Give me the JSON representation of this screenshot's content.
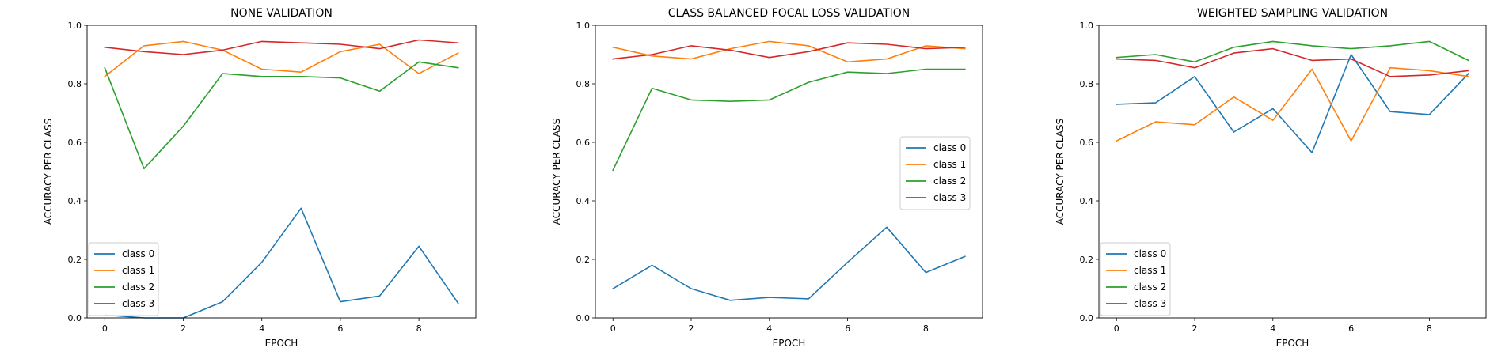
{
  "chart_data": [
    {
      "type": "line",
      "title": "NONE VALIDATION",
      "xlabel": "EPOCH",
      "ylabel": "ACCURACY PER CLASS",
      "xlim": [
        -0.45,
        9.45
      ],
      "ylim": [
        0.0,
        1.0
      ],
      "xticks": [
        0,
        2,
        4,
        6,
        8
      ],
      "yticks": [
        0.0,
        0.2,
        0.4,
        0.6,
        0.8,
        1.0
      ],
      "legend_position": "lower-left",
      "x": [
        0,
        1,
        2,
        3,
        4,
        5,
        6,
        7,
        8,
        9
      ],
      "series": [
        {
          "name": "class 0",
          "color": "#1f77b4",
          "values": [
            0.01,
            0.0,
            0.0,
            0.055,
            0.19,
            0.375,
            0.055,
            0.075,
            0.245,
            0.05
          ]
        },
        {
          "name": "class 1",
          "color": "#ff7f0e",
          "values": [
            0.825,
            0.93,
            0.945,
            0.915,
            0.85,
            0.84,
            0.91,
            0.935,
            0.835,
            0.905
          ]
        },
        {
          "name": "class 2",
          "color": "#2ca02c",
          "values": [
            0.855,
            0.51,
            0.655,
            0.835,
            0.825,
            0.825,
            0.82,
            0.775,
            0.875,
            0.855
          ]
        },
        {
          "name": "class 3",
          "color": "#d62728",
          "values": [
            0.925,
            0.91,
            0.9,
            0.915,
            0.945,
            0.94,
            0.935,
            0.92,
            0.95,
            0.94
          ]
        }
      ]
    },
    {
      "type": "line",
      "title": "CLASS BALANCED FOCAL LOSS VALIDATION",
      "xlabel": "EPOCH",
      "ylabel": "ACCURACY PER CLASS",
      "xlim": [
        -0.45,
        9.45
      ],
      "ylim": [
        0.0,
        1.0
      ],
      "xticks": [
        0,
        2,
        4,
        6,
        8
      ],
      "yticks": [
        0.0,
        0.2,
        0.4,
        0.6,
        0.8,
        1.0
      ],
      "legend_position": "center-right",
      "x": [
        0,
        1,
        2,
        3,
        4,
        5,
        6,
        7,
        8,
        9
      ],
      "series": [
        {
          "name": "class 0",
          "color": "#1f77b4",
          "values": [
            0.1,
            0.18,
            0.1,
            0.06,
            0.07,
            0.065,
            0.19,
            0.31,
            0.155,
            0.21
          ]
        },
        {
          "name": "class 1",
          "color": "#ff7f0e",
          "values": [
            0.925,
            0.895,
            0.885,
            0.92,
            0.945,
            0.93,
            0.875,
            0.885,
            0.93,
            0.92
          ]
        },
        {
          "name": "class 2",
          "color": "#2ca02c",
          "values": [
            0.505,
            0.785,
            0.745,
            0.74,
            0.745,
            0.805,
            0.84,
            0.835,
            0.85,
            0.85
          ]
        },
        {
          "name": "class 3",
          "color": "#d62728",
          "values": [
            0.885,
            0.9,
            0.93,
            0.915,
            0.89,
            0.91,
            0.94,
            0.935,
            0.92,
            0.925
          ]
        }
      ]
    },
    {
      "type": "line",
      "title": "WEIGHTED SAMPLING VALIDATION",
      "xlabel": "EPOCH",
      "ylabel": "ACCURACY PER CLASS",
      "xlim": [
        -0.45,
        9.45
      ],
      "ylim": [
        0.0,
        1.0
      ],
      "xticks": [
        0,
        2,
        4,
        6,
        8
      ],
      "yticks": [
        0.0,
        0.2,
        0.4,
        0.6,
        0.8,
        1.0
      ],
      "legend_position": "lower-left",
      "x": [
        0,
        1,
        2,
        3,
        4,
        5,
        6,
        7,
        8,
        9
      ],
      "series": [
        {
          "name": "class 0",
          "color": "#1f77b4",
          "values": [
            0.73,
            0.735,
            0.825,
            0.635,
            0.715,
            0.565,
            0.9,
            0.705,
            0.695,
            0.835
          ]
        },
        {
          "name": "class 1",
          "color": "#ff7f0e",
          "values": [
            0.605,
            0.67,
            0.66,
            0.755,
            0.675,
            0.85,
            0.605,
            0.855,
            0.845,
            0.825
          ]
        },
        {
          "name": "class 2",
          "color": "#2ca02c",
          "values": [
            0.89,
            0.9,
            0.875,
            0.925,
            0.945,
            0.93,
            0.92,
            0.93,
            0.945,
            0.88
          ]
        },
        {
          "name": "class 3",
          "color": "#d62728",
          "values": [
            0.885,
            0.88,
            0.855,
            0.905,
            0.92,
            0.88,
            0.885,
            0.825,
            0.83,
            0.845
          ]
        }
      ]
    }
  ]
}
